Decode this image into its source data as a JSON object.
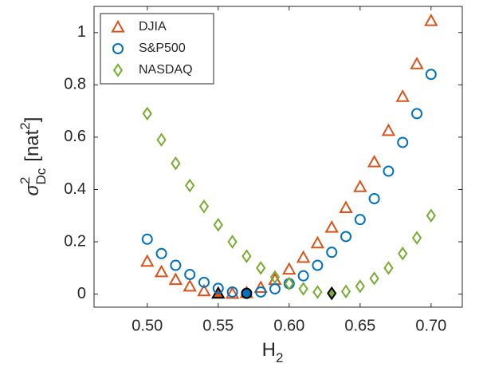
{
  "chart_data": {
    "type": "scatter",
    "xlabel": {
      "main": "H",
      "sub": "2"
    },
    "ylabel": {
      "symbol": "σ",
      "sup": "2",
      "sub": "Dc",
      "unit": "[nat",
      "unit_sup": "2",
      "close": "]"
    },
    "x": [
      0.5,
      0.51,
      0.52,
      0.53,
      0.54,
      0.55,
      0.56,
      0.57,
      0.58,
      0.59,
      0.6,
      0.61,
      0.62,
      0.63,
      0.64,
      0.65,
      0.66,
      0.67,
      0.68,
      0.69,
      0.7
    ],
    "series": [
      {
        "name": "DJIA",
        "color": "#d95319",
        "marker": "triangle",
        "highlight": {
          "index": 5,
          "color": "#000000"
        },
        "values": [
          0.125,
          0.085,
          0.055,
          0.03,
          0.012,
          0.003,
          0.002,
          0.005,
          0.025,
          0.055,
          0.095,
          0.14,
          0.195,
          0.255,
          0.33,
          0.41,
          0.505,
          0.625,
          0.755,
          0.88,
          1.045
        ]
      },
      {
        "name": "S&P500",
        "color": "#0072bd",
        "marker": "circle",
        "highlight": {
          "index": 7,
          "color": "#000000"
        },
        "values": [
          0.21,
          0.155,
          0.11,
          0.075,
          0.045,
          0.022,
          0.008,
          0.003,
          0.008,
          0.02,
          0.04,
          0.07,
          0.11,
          0.16,
          0.22,
          0.285,
          0.365,
          0.47,
          0.58,
          0.69,
          0.84
        ]
      },
      {
        "name": "NASDAQ",
        "color": "#77ac30",
        "marker": "diamond",
        "highlight": {
          "index": 13,
          "color": "#000000"
        },
        "values": [
          0.69,
          0.59,
          0.5,
          0.415,
          0.335,
          0.265,
          0.2,
          0.145,
          0.1,
          0.065,
          0.04,
          0.02,
          0.008,
          0.003,
          0.01,
          0.03,
          0.06,
          0.1,
          0.155,
          0.215,
          0.3
        ]
      }
    ],
    "xlim": [
      0.4625,
      0.722
    ],
    "xticks": [
      {
        "value": 0.5,
        "label": "0.50"
      },
      0.55,
      {
        "value": 0.6,
        "label": "0.60"
      },
      0.65,
      {
        "value": 0.7,
        "label": "0.70"
      }
    ],
    "ylim": [
      -0.05,
      1.1
    ],
    "yticks": [
      0,
      0.2,
      0.4,
      0.6,
      0.8,
      1
    ],
    "grid": false,
    "legend": "top-left"
  }
}
